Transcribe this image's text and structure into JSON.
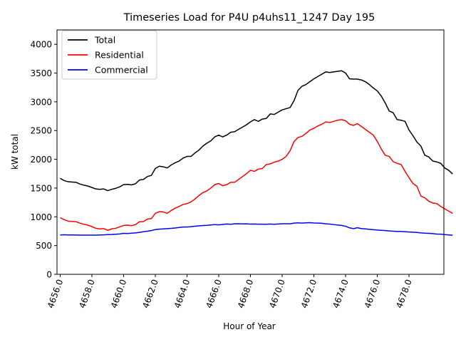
{
  "chart_data": {
    "type": "line",
    "title": "Timeseries Load for P4U p4uhs11_1247  Day 195",
    "xlabel": "Hour of Year",
    "ylabel": "kW total",
    "xlim": [
      4655.8,
      4680.2
    ],
    "ylim": [
      0,
      4250
    ],
    "xticks": [
      4656,
      4658,
      4660,
      4662,
      4664,
      4666,
      4668,
      4670,
      4672,
      4674,
      4676,
      4678
    ],
    "xtick_labels": [
      "4656.0",
      "4658.0",
      "4660.0",
      "4662.0",
      "4664.0",
      "4666.0",
      "4668.0",
      "4670.0",
      "4672.0",
      "4674.0",
      "4676.0",
      "4678.0"
    ],
    "yticks": [
      0,
      500,
      1000,
      1500,
      2000,
      2500,
      3000,
      3500,
      4000
    ],
    "ytick_labels": [
      "0",
      "500",
      "1000",
      "1500",
      "2000",
      "2500",
      "3000",
      "3500",
      "4000"
    ],
    "legend_position": "top-left",
    "grid": false,
    "x_start": 4656,
    "x_step": 0.25,
    "series": [
      {
        "name": "Total",
        "color": "#000000",
        "values": [
          1670,
          1630,
          1610,
          1605,
          1600,
          1570,
          1550,
          1535,
          1510,
          1485,
          1478,
          1485,
          1455,
          1478,
          1495,
          1520,
          1560,
          1565,
          1555,
          1575,
          1640,
          1650,
          1700,
          1720,
          1840,
          1880,
          1870,
          1850,
          1900,
          1940,
          1970,
          2020,
          2050,
          2050,
          2110,
          2160,
          2230,
          2280,
          2320,
          2390,
          2420,
          2390,
          2420,
          2470,
          2480,
          2520,
          2560,
          2600,
          2650,
          2690,
          2660,
          2700,
          2710,
          2790,
          2780,
          2820,
          2860,
          2880,
          2900,
          3020,
          3200,
          3270,
          3300,
          3350,
          3400,
          3440,
          3480,
          3520,
          3510,
          3520,
          3530,
          3540,
          3500,
          3400,
          3395,
          3395,
          3380,
          3350,
          3300,
          3240,
          3190,
          3100,
          2980,
          2840,
          2810,
          2690,
          2680,
          2660,
          2510,
          2410,
          2300,
          2230,
          2070,
          2040,
          1970,
          1955,
          1930,
          1850,
          1810,
          1745
        ]
      },
      {
        "name": "Residential",
        "color": "#ff0000",
        "values": [
          985,
          950,
          925,
          920,
          915,
          890,
          870,
          855,
          830,
          800,
          790,
          795,
          765,
          790,
          800,
          825,
          850,
          855,
          845,
          865,
          915,
          915,
          960,
          970,
          1060,
          1090,
          1085,
          1060,
          1110,
          1150,
          1180,
          1215,
          1230,
          1260,
          1310,
          1370,
          1420,
          1450,
          1500,
          1560,
          1580,
          1540,
          1560,
          1600,
          1600,
          1650,
          1700,
          1750,
          1810,
          1790,
          1830,
          1840,
          1910,
          1920,
          1950,
          1970,
          2000,
          2050,
          2150,
          2310,
          2380,
          2400,
          2450,
          2510,
          2540,
          2580,
          2610,
          2650,
          2640,
          2660,
          2680,
          2690,
          2670,
          2610,
          2590,
          2620,
          2570,
          2520,
          2470,
          2420,
          2310,
          2180,
          2070,
          2050,
          1960,
          1930,
          1910,
          1790,
          1680,
          1580,
          1530,
          1360,
          1330,
          1270,
          1240,
          1230,
          1180,
          1140,
          1100,
          1060
        ]
      },
      {
        "name": "Commercial",
        "color": "#0000ff",
        "values": [
          685,
          688,
          684,
          684,
          683,
          681,
          682,
          682,
          681,
          682,
          684,
          686,
          690,
          692,
          697,
          702,
          712,
          709,
          715,
          720,
          730,
          740,
          750,
          760,
          778,
          786,
          790,
          795,
          800,
          805,
          815,
          822,
          822,
          828,
          836,
          842,
          848,
          852,
          858,
          865,
          860,
          868,
          875,
          870,
          878,
          880,
          876,
          878,
          873,
          875,
          872,
          872,
          870,
          875,
          870,
          875,
          880,
          880,
          878,
          890,
          895,
          890,
          895,
          898,
          892,
          890,
          888,
          878,
          873,
          865,
          856,
          850,
          835,
          808,
          795,
          810,
          795,
          790,
          782,
          776,
          770,
          765,
          760,
          755,
          750,
          745,
          745,
          740,
          735,
          732,
          728,
          720,
          715,
          712,
          708,
          700,
          698,
          690,
          685,
          680
        ]
      }
    ]
  }
}
